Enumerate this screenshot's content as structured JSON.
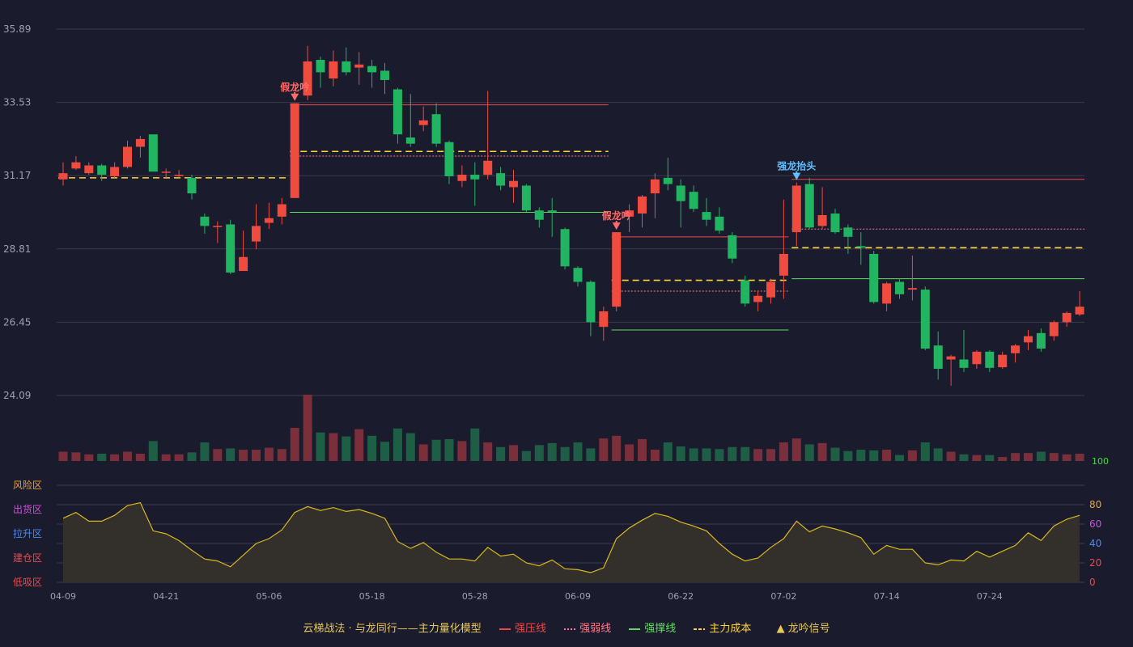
{
  "chart_data": {
    "type": "candlestick",
    "y_axis": {
      "ticks": [
        "35.89",
        "33.53",
        "31.17",
        "28.81",
        "26.45",
        "24.09"
      ],
      "ylim": [
        24.09,
        35.89
      ]
    },
    "x_ticks": [
      "04-09",
      "04-21",
      "05-06",
      "05-18",
      "05-28",
      "06-09",
      "06-22",
      "07-02",
      "07-14",
      "07-24"
    ],
    "volume_axis_label": "100",
    "osc_ticks": [
      "80",
      "60",
      "40",
      "20",
      "0"
    ],
    "zones": [
      "风险区",
      "出货区",
      "拉升区",
      "建仓区",
      "低吸区"
    ],
    "zone_colors": [
      "#e8a23a",
      "#d152d8",
      "#4b8af0",
      "#f04848",
      "#f04848"
    ],
    "signals": [
      {
        "label": "假龙吟",
        "index": 18,
        "color": "#ff6a6a"
      },
      {
        "label": "假龙吟",
        "index": 43,
        "color": "#ff6a6a"
      },
      {
        "label": "强龙抬头",
        "index": 57,
        "color": "#5ec0ff"
      }
    ],
    "candles": [
      [
        31.05,
        31.25,
        30.85,
        31.6
      ],
      [
        31.4,
        31.6,
        31.35,
        31.8
      ],
      [
        31.25,
        31.5,
        31.2,
        31.6
      ],
      [
        31.5,
        31.2,
        31.0,
        31.55
      ],
      [
        31.15,
        31.45,
        31.1,
        31.6
      ],
      [
        31.45,
        32.1,
        31.4,
        32.3
      ],
      [
        32.1,
        32.35,
        31.75,
        32.45
      ],
      [
        32.5,
        31.3,
        31.3,
        32.45
      ],
      [
        31.3,
        31.3,
        31.1,
        31.4
      ],
      [
        31.2,
        31.2,
        31.1,
        31.35
      ],
      [
        31.1,
        30.6,
        30.4,
        31.2
      ],
      [
        29.85,
        29.55,
        29.3,
        29.95
      ],
      [
        29.55,
        29.55,
        29.0,
        29.7
      ],
      [
        29.6,
        28.05,
        28.0,
        29.75
      ],
      [
        28.1,
        28.55,
        28.1,
        29.4
      ],
      [
        29.05,
        29.55,
        28.8,
        30.25
      ],
      [
        29.65,
        29.8,
        29.45,
        30.3
      ],
      [
        29.85,
        30.25,
        29.6,
        30.45
      ],
      [
        30.45,
        33.5,
        30.45,
        33.5
      ],
      [
        33.75,
        34.85,
        33.6,
        35.35
      ],
      [
        34.9,
        34.5,
        34.0,
        35.0
      ],
      [
        34.3,
        34.85,
        34.05,
        35.2
      ],
      [
        34.85,
        34.5,
        34.4,
        35.3
      ],
      [
        34.65,
        34.75,
        34.1,
        35.15
      ],
      [
        34.7,
        34.5,
        34.0,
        34.9
      ],
      [
        34.55,
        34.25,
        33.8,
        34.8
      ],
      [
        33.95,
        32.5,
        32.2,
        34.0
      ],
      [
        32.4,
        32.2,
        32.1,
        33.8
      ],
      [
        32.8,
        32.95,
        32.6,
        33.4
      ],
      [
        33.15,
        32.2,
        32.1,
        33.5
      ],
      [
        32.25,
        31.15,
        30.9,
        32.3
      ],
      [
        31.0,
        31.2,
        30.8,
        31.5
      ],
      [
        31.2,
        31.05,
        30.2,
        31.6
      ],
      [
        31.2,
        31.65,
        31.05,
        33.9
      ],
      [
        31.25,
        30.85,
        30.7,
        31.45
      ],
      [
        30.8,
        31.0,
        30.3,
        31.35
      ],
      [
        30.85,
        30.05,
        30.0,
        30.9
      ],
      [
        30.05,
        29.75,
        29.5,
        30.15
      ],
      [
        30.05,
        30.0,
        29.2,
        30.45
      ],
      [
        29.45,
        28.25,
        28.15,
        29.5
      ],
      [
        28.2,
        27.75,
        27.6,
        28.25
      ],
      [
        27.75,
        26.45,
        26.0,
        27.8
      ],
      [
        26.3,
        26.8,
        25.85,
        26.95
      ],
      [
        26.95,
        29.35,
        26.8,
        29.35
      ],
      [
        29.85,
        30.05,
        29.35,
        30.25
      ],
      [
        29.95,
        30.5,
        29.5,
        30.55
      ],
      [
        30.6,
        31.05,
        29.8,
        31.25
      ],
      [
        31.1,
        30.9,
        30.7,
        31.75
      ],
      [
        30.85,
        30.35,
        29.5,
        31.05
      ],
      [
        30.65,
        30.1,
        30.0,
        30.85
      ],
      [
        30.0,
        29.75,
        29.55,
        30.45
      ],
      [
        29.85,
        29.4,
        29.3,
        30.15
      ],
      [
        29.25,
        28.5,
        28.35,
        29.35
      ],
      [
        27.8,
        27.05,
        26.95,
        27.95
      ],
      [
        27.1,
        27.3,
        26.8,
        27.45
      ],
      [
        27.25,
        27.75,
        27.05,
        27.85
      ],
      [
        27.95,
        28.65,
        27.2,
        30.4
      ],
      [
        29.35,
        30.85,
        28.9,
        30.95
      ],
      [
        30.9,
        29.5,
        29.45,
        31.1
      ],
      [
        29.55,
        29.9,
        29.45,
        30.8
      ],
      [
        29.95,
        29.35,
        29.3,
        30.1
      ],
      [
        29.5,
        29.2,
        28.65,
        29.6
      ],
      [
        28.9,
        28.85,
        28.3,
        29.35
      ],
      [
        28.65,
        27.1,
        27.05,
        28.75
      ],
      [
        27.05,
        27.7,
        26.8,
        27.75
      ],
      [
        27.75,
        27.35,
        27.2,
        27.85
      ],
      [
        27.5,
        27.55,
        27.15,
        28.6
      ],
      [
        27.5,
        25.6,
        25.55,
        27.6
      ],
      [
        25.7,
        24.95,
        24.6,
        26.15
      ],
      [
        25.25,
        25.35,
        24.4,
        25.4
      ],
      [
        25.25,
        24.98,
        24.85,
        26.2
      ],
      [
        25.1,
        25.5,
        24.95,
        25.55
      ],
      [
        25.5,
        24.98,
        24.85,
        25.55
      ],
      [
        25.0,
        25.4,
        24.95,
        25.5
      ],
      [
        25.45,
        25.7,
        25.15,
        25.75
      ],
      [
        25.8,
        26.0,
        25.55,
        26.2
      ],
      [
        26.1,
        25.6,
        25.5,
        26.25
      ],
      [
        26.0,
        26.45,
        25.85,
        26.5
      ],
      [
        26.45,
        26.75,
        26.3,
        26.8
      ],
      [
        26.7,
        26.95,
        26.65,
        27.45
      ]
    ],
    "vol": [
      14,
      13,
      10,
      11,
      10,
      14,
      11,
      30,
      10,
      10,
      13,
      28,
      18,
      19,
      17,
      17,
      20,
      18,
      50,
      100,
      43,
      42,
      37,
      48,
      38,
      29,
      49,
      42,
      25,
      32,
      33,
      30,
      49,
      28,
      21,
      24,
      15,
      24,
      27,
      21,
      28,
      19,
      34,
      38,
      25,
      33,
      17,
      28,
      22,
      19,
      19,
      18,
      21,
      21,
      18,
      18,
      28,
      34,
      25,
      27,
      20,
      15,
      17,
      16,
      17,
      9,
      16,
      28,
      19,
      14,
      10,
      9,
      9,
      6,
      12,
      12,
      14,
      12,
      10,
      11
    ],
    "osc": [
      66,
      72,
      63,
      63,
      69,
      79,
      82,
      53,
      50,
      43,
      33,
      24,
      22,
      16,
      28,
      40,
      45,
      54,
      72,
      78,
      74,
      77,
      73,
      75,
      71,
      66,
      42,
      35,
      41,
      31,
      24,
      24,
      22,
      36,
      27,
      29,
      20,
      17,
      23,
      14,
      13,
      10,
      15,
      45,
      56,
      64,
      71,
      68,
      62,
      58,
      53,
      40,
      29,
      22,
      25,
      36,
      45,
      63,
      52,
      58,
      55,
      51,
      46,
      29,
      38,
      34,
      34,
      20,
      18,
      23,
      22,
      32,
      26,
      32,
      38,
      51,
      43,
      58,
      65,
      69
    ],
    "lines": {
      "strong_pressure": [
        {
          "from": 18,
          "to": 42,
          "value": 33.45,
          "color": "#f04848"
        },
        {
          "from": 43,
          "to": 56,
          "value": 29.2,
          "color": "#f04848"
        },
        {
          "from": 57,
          "to": 79,
          "value": 31.05,
          "color": "#f04848"
        }
      ],
      "weak_line": [
        {
          "from": 18,
          "to": 42,
          "value": 31.8,
          "color": "#ff7a8a"
        },
        {
          "from": 43,
          "to": 56,
          "value": 27.45,
          "color": "#ff7a8a"
        },
        {
          "from": 57,
          "to": 79,
          "value": 29.45,
          "color": "#ff7a8a"
        }
      ],
      "support": [
        {
          "from": 18,
          "to": 42,
          "value": 29.99,
          "color": "#5ee05e"
        },
        {
          "from": 43,
          "to": 56,
          "value": 26.2,
          "color": "#5ee05e"
        },
        {
          "from": 57,
          "to": 79,
          "value": 27.85,
          "color": "#5ee05e"
        }
      ],
      "main_cost": [
        {
          "from": 0,
          "to": 17,
          "value": 31.1,
          "color": "#ffd43a"
        },
        {
          "from": 18,
          "to": 42,
          "value": 31.95,
          "color": "#ffd43a"
        },
        {
          "from": 43,
          "to": 56,
          "value": 27.8,
          "color": "#ffd43a"
        },
        {
          "from": 57,
          "to": 79,
          "value": 28.85,
          "color": "#ffd43a"
        }
      ]
    },
    "colors": {
      "up": "#ef4b3f",
      "down": "#22b561",
      "vol_up": "#7b2f3a",
      "vol_down": "#1e5e45",
      "grid": "#3a3b4d",
      "osc_line": "#d9b820",
      "osc_fill": "#35302a"
    }
  },
  "legend": {
    "title": "云梯战法 · 与龙同行——主力量化模型",
    "strong_pressure": "强压线",
    "weak": "强弱线",
    "support": "强撑线",
    "cost": "主力成本",
    "signal": "龙吟信号"
  }
}
